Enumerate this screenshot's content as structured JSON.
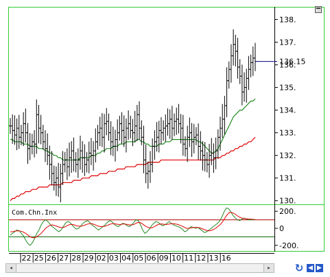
{
  "window": {
    "last_price": "136.15"
  },
  "colors": {
    "frame_green": "#33cc33",
    "price_bar": "#000000",
    "ma_fast": "#228b22",
    "ma_slow": "#e00000",
    "last_price_line": "#000080",
    "upper_band": "#b00000",
    "lower_band": "#006400",
    "nav_blue": "#2458c8"
  },
  "icons": {
    "maximize": "maximize-icon",
    "refresh": "refresh-icon",
    "nav_left": "arrow-left-icon",
    "nav_right": "arrow-right-icon"
  },
  "chart_data": [
    {
      "type": "ohlc",
      "panel": "price",
      "y_ticks": [
        "138.",
        "137.",
        "136.",
        "135.",
        "134.",
        "133.",
        "132.",
        "131.",
        "130."
      ],
      "y_tick_values": [
        138,
        137,
        136,
        135,
        134,
        133,
        132,
        131,
        130
      ],
      "ylim": [
        129.9,
        138.5
      ],
      "x_date_labels": [
        "22",
        "25",
        "26",
        "27",
        "28",
        "29",
        "02",
        "03",
        "04",
        "05",
        "06",
        "09",
        "10",
        "11",
        "12",
        "13",
        "16"
      ],
      "close": [
        133.3,
        133.1,
        132.9,
        133.2,
        132.8,
        133.0,
        133.4,
        133.0,
        132.3,
        132.4,
        132.6,
        132.5,
        133.8,
        133.2,
        133.0,
        132.6,
        132.3,
        132.0,
        131.6,
        131.2,
        130.8,
        131.0,
        130.6,
        131.2,
        131.6,
        131.8,
        131.5,
        131.9,
        132.2,
        131.8,
        131.6,
        131.8,
        132.2,
        131.9,
        131.6,
        131.8,
        132.1,
        132.0,
        132.2,
        132.6,
        133.0,
        133.2,
        132.8,
        133.4,
        133.5,
        133.0,
        132.6,
        132.4,
        132.7,
        133.0,
        133.4,
        133.1,
        132.8,
        133.2,
        133.4,
        133.1,
        133.0,
        133.3,
        133.8,
        133.2,
        132.8,
        131.8,
        131.2,
        131.3,
        131.6,
        132.4,
        132.6,
        132.8,
        133.1,
        133.0,
        133.2,
        133.3,
        133.4,
        133.6,
        133.2,
        133.5,
        133.6,
        133.4,
        133.2,
        132.5,
        132.3,
        132.8,
        133.0,
        132.6,
        132.8,
        132.9,
        132.4,
        132.2,
        132.0,
        131.8,
        131.6,
        132.0,
        132.1,
        131.9,
        132.2,
        132.8,
        133.2,
        133.6,
        134.2,
        135.3,
        135.8,
        136.4,
        136.9,
        136.6,
        135.9,
        135.5,
        134.8,
        135.0,
        135.4,
        135.8,
        136.1,
        136.3,
        136.15
      ],
      "ma_fast": [
        132.7,
        132.7,
        132.6,
        132.6,
        132.6,
        132.6,
        132.5,
        132.5,
        132.5,
        132.4,
        132.4,
        132.4,
        132.4,
        132.3,
        132.3,
        132.3,
        132.2,
        132.2,
        132.1,
        132.1,
        132.0,
        132.0,
        131.9,
        131.9,
        131.8,
        131.8,
        131.8,
        131.8,
        131.8,
        131.8,
        131.8,
        131.8,
        131.9,
        131.9,
        131.9,
        131.9,
        131.9,
        132.0,
        132.0,
        132.0,
        132.1,
        132.1,
        132.2,
        132.2,
        132.3,
        132.3,
        132.3,
        132.4,
        132.4,
        132.4,
        132.5,
        132.5,
        132.5,
        132.6,
        132.6,
        132.6,
        132.6,
        132.6,
        132.7,
        132.7,
        132.6,
        132.6,
        132.5,
        132.5,
        132.4,
        132.4,
        132.4,
        132.4,
        132.5,
        132.5,
        132.5,
        132.6,
        132.6,
        132.6,
        132.7,
        132.7,
        132.7,
        132.7,
        132.7,
        132.7,
        132.7,
        132.7,
        132.7,
        132.7,
        132.7,
        132.7,
        132.6,
        132.6,
        132.5,
        132.4,
        132.3,
        132.2,
        132.1,
        132.1,
        132.2,
        132.3,
        132.5,
        132.7,
        132.9,
        133.1,
        133.3,
        133.5,
        133.7,
        133.8,
        133.9,
        134.0,
        134.0,
        134.1,
        134.2,
        134.3,
        134.4,
        134.4,
        134.5
      ],
      "ma_slow": [
        130.0,
        130.1,
        130.1,
        130.2,
        130.2,
        130.3,
        130.3,
        130.4,
        130.4,
        130.4,
        130.5,
        130.5,
        130.5,
        130.6,
        130.6,
        130.6,
        130.6,
        130.6,
        130.7,
        130.7,
        130.7,
        130.7,
        130.7,
        130.7,
        130.8,
        130.8,
        130.8,
        130.8,
        130.8,
        130.9,
        130.9,
        130.9,
        130.9,
        131.0,
        131.0,
        131.0,
        131.0,
        131.1,
        131.1,
        131.1,
        131.1,
        131.2,
        131.2,
        131.2,
        131.2,
        131.3,
        131.3,
        131.3,
        131.3,
        131.4,
        131.4,
        131.4,
        131.4,
        131.5,
        131.5,
        131.5,
        131.5,
        131.5,
        131.6,
        131.6,
        131.6,
        131.6,
        131.6,
        131.7,
        131.7,
        131.7,
        131.7,
        131.7,
        131.7,
        131.8,
        131.8,
        131.8,
        131.8,
        131.8,
        131.8,
        131.8,
        131.8,
        131.8,
        131.8,
        131.8,
        131.8,
        131.8,
        131.8,
        131.8,
        131.8,
        131.8,
        131.8,
        131.8,
        131.8,
        131.8,
        131.8,
        131.8,
        131.8,
        131.8,
        131.9,
        131.9,
        131.9,
        132.0,
        132.0,
        132.1,
        132.1,
        132.2,
        132.2,
        132.3,
        132.3,
        132.4,
        132.4,
        132.5,
        132.5,
        132.6,
        132.6,
        132.7,
        132.8
      ],
      "last_value": 136.15
    },
    {
      "type": "line",
      "panel": "indicator",
      "title": "Com.Chn.Inx",
      "y_ticks": [
        "200.",
        "0",
        "-200."
      ],
      "y_tick_values": [
        200,
        0,
        -200
      ],
      "ylim": [
        -250,
        250
      ],
      "bands": [
        100,
        -100
      ],
      "series": [
        {
          "values": [
            -80,
            -60,
            -40,
            -20,
            -30,
            -60,
            -90,
            -140,
            -180,
            -200,
            -170,
            -120,
            -60,
            -20,
            40,
            80,
            100,
            80,
            50,
            20,
            0,
            -20,
            -40,
            -20,
            20,
            60,
            80,
            70,
            40,
            10,
            -10,
            0,
            30,
            60,
            80,
            90,
            70,
            40,
            20,
            0,
            -20,
            0,
            20,
            40,
            70,
            90,
            80,
            50,
            30,
            20,
            40,
            60,
            50,
            30,
            20,
            40,
            70,
            100,
            90,
            40,
            -20,
            -60,
            -40,
            -10,
            30,
            60,
            80,
            70,
            50,
            30,
            40,
            60,
            80,
            60,
            40,
            30,
            20,
            10,
            -10,
            -40,
            -30,
            0,
            20,
            10,
            0,
            10,
            -10,
            -30,
            -50,
            -40,
            -20,
            0,
            20,
            40,
            60,
            90,
            140,
            200,
            240,
            230,
            190,
            150,
            120,
            100,
            90,
            110,
            120,
            110,
            100,
            100,
            100,
            100
          ]
        },
        {
          "values": [
            -40,
            -40,
            -35,
            -30,
            -30,
            -35,
            -45,
            -60,
            -80,
            -100,
            -110,
            -110,
            -100,
            -80,
            -60,
            -30,
            0,
            20,
            35,
            40,
            35,
            25,
            15,
            10,
            10,
            20,
            35,
            45,
            45,
            40,
            30,
            25,
            25,
            30,
            40,
            50,
            55,
            55,
            45,
            35,
            25,
            20,
            20,
            25,
            35,
            45,
            55,
            55,
            50,
            45,
            45,
            50,
            50,
            45,
            40,
            40,
            45,
            60,
            70,
            65,
            50,
            30,
            15,
            5,
            5,
            15,
            30,
            45,
            50,
            50,
            45,
            45,
            50,
            55,
            55,
            50,
            45,
            35,
            25,
            10,
            0,
            0,
            5,
            10,
            10,
            10,
            5,
            -5,
            -15,
            -25,
            -30,
            -25,
            -15,
            0,
            20,
            40,
            70,
            110,
            150,
            180,
            190,
            180,
            165,
            145,
            130,
            120,
            115,
            112,
            110,
            108,
            106,
            105
          ]
        }
      ]
    }
  ]
}
